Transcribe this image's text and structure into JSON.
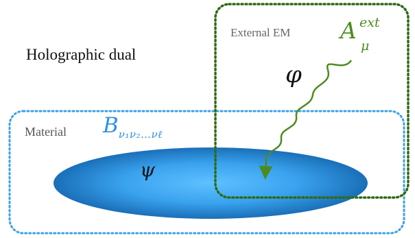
{
  "diagram": {
    "title": "Holographic dual",
    "material": {
      "label": "Material",
      "symbol_main": "B",
      "symbol_sub": "ν₁ν₂…νℓ",
      "field": "ψ"
    },
    "external": {
      "label": "External EM",
      "symbol_main": "A",
      "symbol_sup": "ext",
      "symbol_sub": "μ"
    },
    "bulk_field": "φ",
    "colors": {
      "material": "#2e8fe8",
      "external": "#2e6b12",
      "wave": "#4d8b1e",
      "ellipse_center": "#5fc0ff",
      "ellipse_edge": "#1a6fb8"
    }
  }
}
